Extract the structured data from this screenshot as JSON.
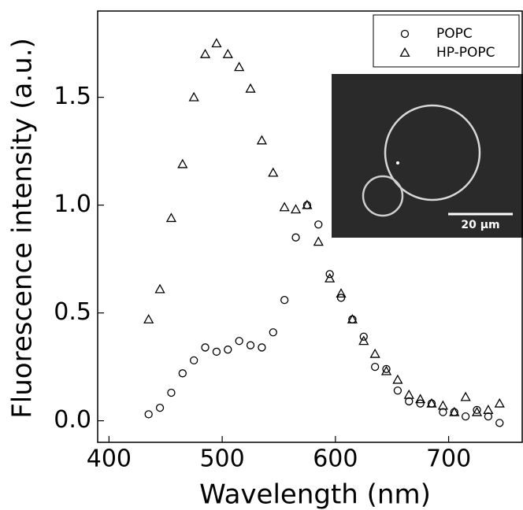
{
  "chart_data": {
    "type": "scatter",
    "xlabel": "Wavelength (nm)",
    "ylabel": "Fluorescence intensity (a.u.)",
    "inset_scale_label": "20 μm",
    "x": [
      435,
      445,
      455,
      465,
      475,
      485,
      495,
      505,
      515,
      525,
      535,
      545,
      555,
      565,
      575,
      585,
      595,
      605,
      615,
      625,
      635,
      645,
      655,
      665,
      675,
      685,
      695,
      705,
      715,
      725,
      735,
      745
    ],
    "series": [
      {
        "name": "POPC",
        "marker": "circle",
        "color": "#000000",
        "values": [
          0.03,
          0.06,
          0.13,
          0.22,
          0.28,
          0.34,
          0.32,
          0.33,
          0.37,
          0.35,
          0.34,
          0.41,
          0.56,
          0.85,
          1.0,
          0.91,
          0.68,
          0.57,
          0.47,
          0.39,
          0.25,
          0.24,
          0.14,
          0.09,
          0.08,
          0.08,
          0.04,
          0.04,
          0.02,
          0.05,
          0.02,
          -0.01
        ]
      },
      {
        "name": "HP-POPC",
        "marker": "triangle",
        "color": "#000000",
        "values": [
          0.47,
          0.61,
          0.94,
          1.19,
          1.5,
          1.7,
          1.75,
          1.7,
          1.64,
          1.54,
          1.3,
          1.15,
          0.99,
          0.98,
          1.0,
          0.83,
          0.66,
          0.59,
          0.47,
          0.37,
          0.31,
          0.23,
          0.19,
          0.12,
          0.1,
          0.08,
          0.07,
          0.04,
          0.11,
          0.04,
          0.05,
          0.08
        ]
      }
    ],
    "xlim": [
      390,
      765
    ],
    "xticks": [
      400,
      500,
      600,
      700
    ],
    "ylim": [
      -0.1,
      1.9
    ],
    "yticks": [
      {
        "value": 0,
        "label": "0.0"
      },
      0.5,
      {
        "value": 1,
        "label": "1.0"
      },
      1.5
    ],
    "legend": "upper right"
  }
}
